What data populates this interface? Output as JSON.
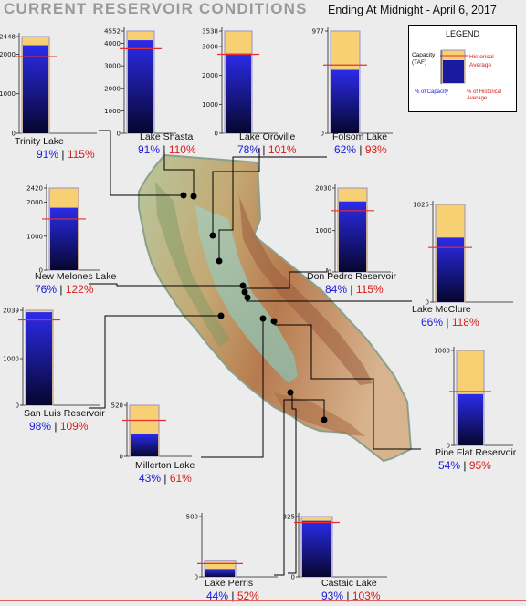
{
  "header": {
    "title": "CURRENT RESERVOIR CONDITIONS",
    "date": "Ending At Midnight - April 6, 2017"
  },
  "legend": {
    "title": "LEGEND",
    "capacity_label": "Capacity (TAF)",
    "historical_label": "Historical Average",
    "pct_capacity_label": "% of Capacity",
    "pct_historical_label": "% of Historical Average"
  },
  "colors": {
    "current_storage_top": "#2b2bea",
    "current_storage_bottom": "#06062e",
    "capacity_fill": "#f6d073",
    "capacity_outline": "#9b8fc2",
    "historical_line": "#e53030",
    "capacity_text": "#1a1adc",
    "historical_text": "#d81b1b",
    "connector_line": "#000000"
  },
  "chart_data": [
    {
      "type": "bar",
      "name": "Trinity Lake",
      "capacity": 2448,
      "current": 2228,
      "historical": 1937,
      "y_ticks": [
        "2448",
        "2000",
        "1000",
        "0"
      ],
      "y_tick_values": [
        2448,
        2000,
        1000,
        0
      ],
      "pct_capacity": "91%",
      "pct_historical": "115%"
    },
    {
      "type": "bar",
      "name": "Lake Shasta",
      "capacity": 4552,
      "current": 4142,
      "historical": 3766,
      "y_ticks": [
        "4552",
        "4000",
        "3000",
        "2000",
        "1000",
        "0"
      ],
      "y_tick_values": [
        4552,
        4000,
        3000,
        2000,
        1000,
        0
      ],
      "pct_capacity": "91%",
      "pct_historical": "110%"
    },
    {
      "type": "bar",
      "name": "Lake Oroville",
      "capacity": 3538,
      "current": 2760,
      "historical": 2733,
      "y_ticks": [
        "3538",
        "3000",
        "2000",
        "1000",
        "0"
      ],
      "y_tick_values": [
        3538,
        3000,
        2000,
        1000,
        0
      ],
      "pct_capacity": "78%",
      "pct_historical": "101%"
    },
    {
      "type": "bar",
      "name": "Folsom Lake",
      "capacity": 977,
      "current": 606,
      "historical": 652,
      "y_ticks": [
        "977",
        "0"
      ],
      "y_tick_values": [
        977,
        0
      ],
      "pct_capacity": "62%",
      "pct_historical": "93%"
    },
    {
      "type": "bar",
      "name": "New Melones Lake",
      "capacity": 2420,
      "current": 1839,
      "historical": 1508,
      "y_ticks": [
        "2420",
        "2000",
        "1000",
        "0"
      ],
      "y_tick_values": [
        2420,
        2000,
        1000,
        0
      ],
      "pct_capacity": "76%",
      "pct_historical": "122%"
    },
    {
      "type": "bar",
      "name": "Don Pedro Reservoir",
      "capacity": 2030,
      "current": 1705,
      "historical": 1483,
      "y_ticks": [
        "2030",
        "1000",
        "0"
      ],
      "y_tick_values": [
        2030,
        1000,
        0
      ],
      "pct_capacity": "84%",
      "pct_historical": "115%"
    },
    {
      "type": "bar",
      "name": "Lake McClure",
      "capacity": 1025,
      "current": 677,
      "historical": 573,
      "y_ticks": [
        "1025",
        "0"
      ],
      "y_tick_values": [
        1025,
        0
      ],
      "pct_capacity": "66%",
      "pct_historical": "118%"
    },
    {
      "type": "bar",
      "name": "San Luis Reservoir",
      "capacity": 2039,
      "current": 1998,
      "historical": 1833,
      "y_ticks": [
        "2039",
        "1000",
        "0"
      ],
      "y_tick_values": [
        2039,
        1000,
        0
      ],
      "pct_capacity": "98%",
      "pct_historical": "109%"
    },
    {
      "type": "bar",
      "name": "Millerton Lake",
      "capacity": 520,
      "current": 224,
      "historical": 367,
      "y_ticks": [
        "520",
        "0"
      ],
      "y_tick_values": [
        520,
        0
      ],
      "pct_capacity": "43%",
      "pct_historical": "61%"
    },
    {
      "type": "bar",
      "name": "Pine Flat Reservoir",
      "capacity": 1000,
      "current": 540,
      "historical": 568,
      "y_ticks": [
        "1000",
        "0"
      ],
      "y_tick_values": [
        1000,
        0
      ],
      "pct_capacity": "54%",
      "pct_historical": "95%"
    },
    {
      "type": "bar",
      "name": "Lake Perris",
      "capacity": 131,
      "current": 58,
      "historical": 111,
      "y_ticks": [
        "500",
        "0"
      ],
      "y_tick_values": [
        500,
        0
      ],
      "pct_capacity": "44%",
      "pct_historical": "52%"
    },
    {
      "type": "bar",
      "name": "Castaic Lake",
      "capacity": 325,
      "current": 302,
      "historical": 293,
      "y_ticks": [
        "325",
        "0"
      ],
      "y_tick_values": [
        325,
        0
      ],
      "pct_capacity": "93%",
      "pct_historical": "103%"
    }
  ]
}
